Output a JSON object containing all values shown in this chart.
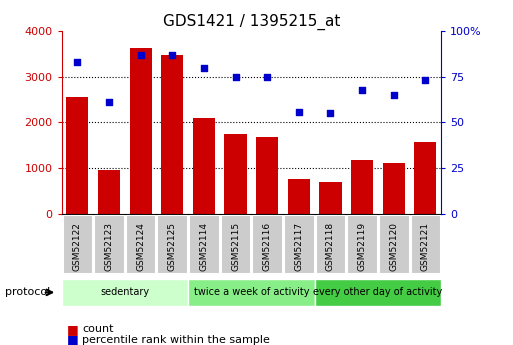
{
  "title": "GDS1421 / 1395215_at",
  "samples": [
    "GSM52122",
    "GSM52123",
    "GSM52124",
    "GSM52125",
    "GSM52114",
    "GSM52115",
    "GSM52116",
    "GSM52117",
    "GSM52118",
    "GSM52119",
    "GSM52120",
    "GSM52121"
  ],
  "counts": [
    2550,
    950,
    3620,
    3480,
    2100,
    1750,
    1680,
    760,
    700,
    1180,
    1120,
    1580
  ],
  "percentiles": [
    83,
    61,
    87,
    87,
    80,
    75,
    75,
    56,
    55,
    68,
    65,
    73
  ],
  "groups": [
    {
      "label": "sedentary",
      "start": 0,
      "end": 4,
      "color": "#ccffcc"
    },
    {
      "label": "twice a week of activity",
      "start": 4,
      "end": 8,
      "color": "#88ee88"
    },
    {
      "label": "every other day of activity",
      "start": 8,
      "end": 12,
      "color": "#44cc44"
    }
  ],
  "bar_color": "#cc0000",
  "dot_color": "#0000cc",
  "left_ylim": [
    0,
    4000
  ],
  "right_ylim": [
    0,
    100
  ],
  "left_yticks": [
    0,
    1000,
    2000,
    3000,
    4000
  ],
  "right_yticks": [
    0,
    25,
    50,
    75,
    100
  ],
  "right_yticklabels": [
    "0",
    "25",
    "50",
    "75",
    "100%"
  ],
  "grid_values": [
    1000,
    2000,
    3000
  ],
  "legend_items": [
    {
      "label": "count",
      "color": "#cc0000"
    },
    {
      "label": "percentile rank within the sample",
      "color": "#0000cc"
    }
  ],
  "protocol_label": "protocol",
  "xtick_box_color": "#cccccc",
  "fig_width": 5.13,
  "fig_height": 3.45,
  "dpi": 100
}
